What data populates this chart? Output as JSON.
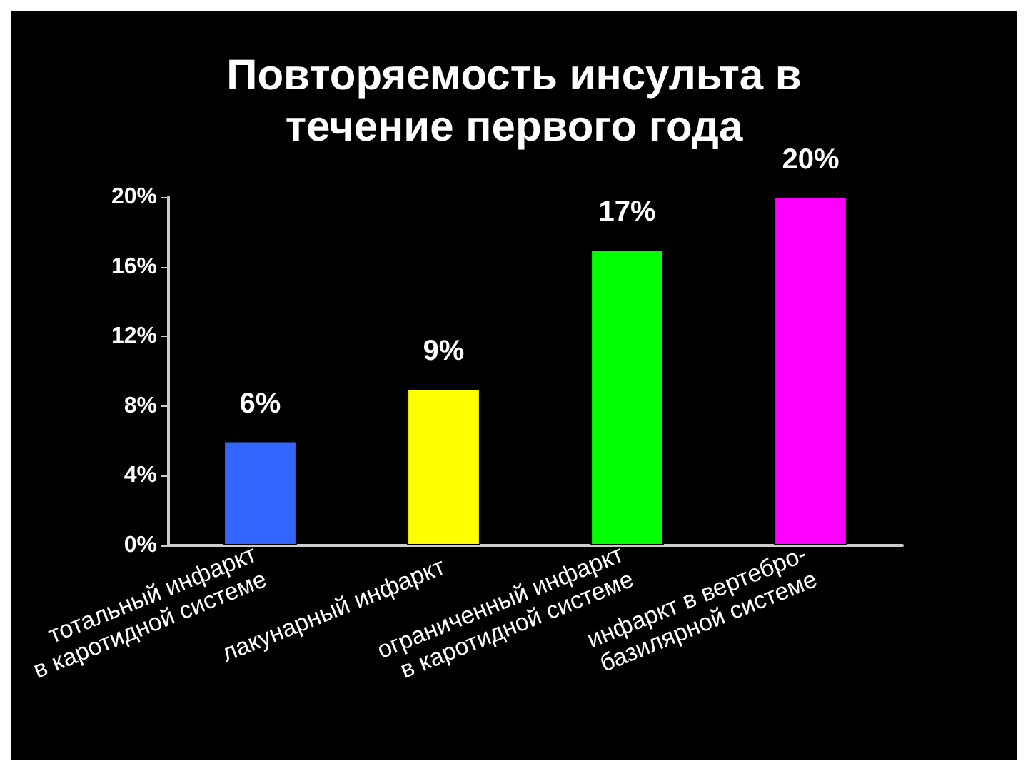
{
  "chart_data": {
    "type": "bar",
    "title": "Повторяемость инсульта в\nтечение первого года",
    "categories": [
      "тотальный инфаркт\nв каротидной системе",
      "лакунарный инфаркт",
      "ограниченный инфаркт\nв каротидной системе",
      "инфаркт в вертебро-\nбазилярной системе"
    ],
    "values": [
      6,
      9,
      17,
      20
    ],
    "colors": [
      "#3366ff",
      "#ffff00",
      "#00ff00",
      "#ff00ff"
    ],
    "value_labels": [
      "6%",
      "9%",
      "17%",
      "20%"
    ],
    "ylim": [
      0,
      20
    ],
    "yticks": [
      {
        "value": 0,
        "label": "0%"
      },
      {
        "value": 4,
        "label": "4%"
      },
      {
        "value": 8,
        "label": "8%"
      },
      {
        "value": 12,
        "label": "12%"
      },
      {
        "value": 16,
        "label": "16%"
      },
      {
        "value": 20,
        "label": "20%"
      }
    ],
    "grid": false
  }
}
